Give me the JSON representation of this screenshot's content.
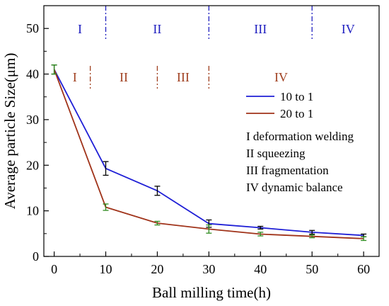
{
  "chart_data": {
    "type": "line",
    "xlabel": "Ball milling time(h)",
    "ylabel": "Average particle Size(μm)",
    "xlim": [
      -2,
      63
    ],
    "ylim": [
      0,
      55
    ],
    "xticks": [
      0,
      10,
      20,
      30,
      40,
      50,
      60
    ],
    "yticks": [
      0,
      10,
      20,
      30,
      40,
      50
    ],
    "grid": false,
    "legend_position": "right",
    "x": [
      0,
      10,
      20,
      30,
      40,
      50,
      60
    ],
    "series": [
      {
        "name": "10 to 1",
        "color": "#1f1fd6",
        "values": [
          41.0,
          19.3,
          14.4,
          7.2,
          6.3,
          5.3,
          4.6
        ],
        "errors": [
          1.0,
          1.5,
          1.0,
          0.8,
          0.3,
          0.4,
          0.3
        ],
        "error_color": "#000000"
      },
      {
        "name": "20 to 1",
        "color": "#a0331a",
        "values": [
          41.0,
          10.8,
          7.3,
          6.0,
          4.9,
          4.4,
          3.9
        ],
        "errors": [
          1.0,
          0.7,
          0.4,
          0.9,
          0.4,
          0.3,
          0.4
        ],
        "error_color": "#2e8b1e"
      }
    ],
    "stage_notes": [
      "I   deformation welding",
      "II  squeezing",
      "III fragmentation",
      "IV dynamic balance"
    ],
    "regions_10to1": {
      "color": "#2020c0",
      "boundaries": [
        10,
        30,
        50
      ],
      "labels": [
        {
          "text": "I",
          "x": 5
        },
        {
          "text": "II",
          "x": 20
        },
        {
          "text": "III",
          "x": 40
        },
        {
          "text": "IV",
          "x": 57
        }
      ],
      "label_y": 50
    },
    "regions_20to1": {
      "color": "#a04020",
      "boundaries": [
        7,
        20,
        30
      ],
      "labels": [
        {
          "text": "I",
          "x": 4
        },
        {
          "text": "II",
          "x": 13.5
        },
        {
          "text": "III",
          "x": 25
        },
        {
          "text": "IV",
          "x": 44
        }
      ],
      "label_y": 39.5
    }
  }
}
